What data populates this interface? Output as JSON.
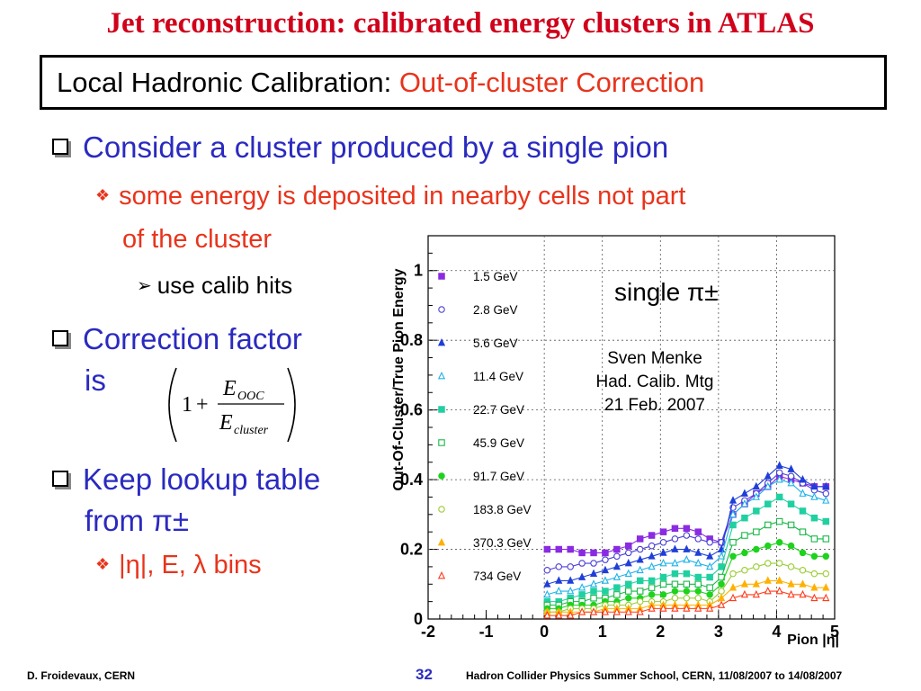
{
  "slide": {
    "title": "Jet reconstruction: calibrated energy clusters in ATLAS",
    "box_black": "Local Hadronic Calibration: ",
    "box_red": "Out-of-cluster Correction"
  },
  "bullets": {
    "b1": "Consider a cluster produced by a single pion",
    "b1_sub1_line1": "some energy is deposited in nearby cells not part",
    "b1_sub1_line2": "of the cluster",
    "b1_sub2": "use calib hits",
    "b2_line1": "Correction factor",
    "b2_line2": "is",
    "b3_line1": "Keep lookup table",
    "b3_line2": "from π±",
    "b3_sub1": "|η|, E, λ bins"
  },
  "formula": {
    "one": "1",
    "plus": "+",
    "num": "E",
    "num_sub": "OOC",
    "den": "E",
    "den_sub": "cluster"
  },
  "footer": {
    "left": "D. Froidevaux, CERN",
    "page": "32",
    "right": "Hadron Collider Physics Summer School, CERN, 11/08/2007 to 14/08/2007"
  },
  "chart_data": {
    "type": "scatter",
    "xlabel": "Pion |η|",
    "ylabel": "Out-Of-Cluster/True Pion Energy",
    "xlim": [
      -2,
      5
    ],
    "ylim": [
      0,
      1.1
    ],
    "x_ticks": [
      -2,
      -1,
      0,
      1,
      2,
      3,
      4,
      5
    ],
    "y_ticks": [
      0,
      0.2,
      0.4,
      0.6,
      0.8,
      1
    ],
    "annotation_main": "single π±",
    "annotation_lines": [
      "Sven Menke",
      "Had. Calib. Mtg",
      "21 Feb. 2007"
    ],
    "x": [
      0.05,
      0.25,
      0.45,
      0.65,
      0.85,
      1.05,
      1.25,
      1.45,
      1.65,
      1.85,
      2.05,
      2.25,
      2.45,
      2.65,
      2.85,
      3.05,
      3.25,
      3.45,
      3.65,
      3.85,
      4.05,
      4.25,
      4.45,
      4.65,
      4.85
    ],
    "series": [
      {
        "name": "1.5 GeV",
        "color": "#8a2be2",
        "marker": "square-filled",
        "values": [
          0.2,
          0.2,
          0.2,
          0.19,
          0.19,
          0.19,
          0.2,
          0.21,
          0.23,
          0.24,
          0.25,
          0.26,
          0.26,
          0.25,
          0.23,
          0.22,
          0.3,
          0.33,
          0.36,
          0.38,
          0.41,
          0.4,
          0.39,
          0.38,
          0.38
        ]
      },
      {
        "name": "2.8 GeV",
        "color": "#4b3fd6",
        "marker": "circle-open",
        "values": [
          0.14,
          0.15,
          0.15,
          0.16,
          0.16,
          0.17,
          0.18,
          0.19,
          0.2,
          0.21,
          0.22,
          0.23,
          0.24,
          0.23,
          0.22,
          0.22,
          0.32,
          0.34,
          0.36,
          0.39,
          0.42,
          0.41,
          0.39,
          0.37,
          0.36
        ]
      },
      {
        "name": "5.6 GeV",
        "color": "#1f3fd8",
        "marker": "triangle-filled",
        "values": [
          0.1,
          0.11,
          0.11,
          0.12,
          0.13,
          0.14,
          0.15,
          0.16,
          0.17,
          0.18,
          0.19,
          0.2,
          0.2,
          0.19,
          0.18,
          0.2,
          0.34,
          0.36,
          0.38,
          0.41,
          0.44,
          0.43,
          0.4,
          0.38,
          0.38
        ]
      },
      {
        "name": "11.4 GeV",
        "color": "#1fb3e8",
        "marker": "triangle-open",
        "values": [
          0.07,
          0.08,
          0.08,
          0.09,
          0.1,
          0.11,
          0.12,
          0.13,
          0.14,
          0.15,
          0.16,
          0.16,
          0.17,
          0.16,
          0.15,
          0.18,
          0.3,
          0.33,
          0.35,
          0.38,
          0.4,
          0.39,
          0.36,
          0.35,
          0.34
        ]
      },
      {
        "name": "22.7 GeV",
        "color": "#20d0a0",
        "marker": "square-filled",
        "values": [
          0.05,
          0.05,
          0.06,
          0.07,
          0.08,
          0.08,
          0.09,
          0.1,
          0.11,
          0.11,
          0.12,
          0.13,
          0.13,
          0.12,
          0.12,
          0.15,
          0.27,
          0.29,
          0.31,
          0.33,
          0.35,
          0.33,
          0.31,
          0.29,
          0.28
        ]
      },
      {
        "name": "45.9 GeV",
        "color": "#18b848",
        "marker": "square-open",
        "values": [
          0.04,
          0.04,
          0.05,
          0.05,
          0.06,
          0.06,
          0.07,
          0.08,
          0.08,
          0.09,
          0.1,
          0.1,
          0.1,
          0.1,
          0.09,
          0.12,
          0.22,
          0.24,
          0.25,
          0.27,
          0.28,
          0.27,
          0.25,
          0.23,
          0.23
        ]
      },
      {
        "name": "91.7 GeV",
        "color": "#1ed21e",
        "marker": "circle-filled",
        "values": [
          0.03,
          0.03,
          0.04,
          0.04,
          0.04,
          0.05,
          0.05,
          0.06,
          0.06,
          0.07,
          0.07,
          0.08,
          0.08,
          0.08,
          0.07,
          0.1,
          0.18,
          0.19,
          0.2,
          0.21,
          0.22,
          0.21,
          0.19,
          0.18,
          0.18
        ]
      },
      {
        "name": "183.8 GeV",
        "color": "#9acd32",
        "marker": "circle-open",
        "values": [
          0.02,
          0.02,
          0.03,
          0.03,
          0.03,
          0.04,
          0.04,
          0.04,
          0.05,
          0.05,
          0.05,
          0.06,
          0.06,
          0.06,
          0.05,
          0.08,
          0.13,
          0.14,
          0.15,
          0.16,
          0.16,
          0.15,
          0.14,
          0.13,
          0.13
        ]
      },
      {
        "name": "370.3 GeV",
        "color": "#ffb000",
        "marker": "triangle-filled",
        "values": [
          0.02,
          0.02,
          0.02,
          0.02,
          0.02,
          0.03,
          0.03,
          0.03,
          0.03,
          0.04,
          0.04,
          0.04,
          0.04,
          0.04,
          0.04,
          0.06,
          0.09,
          0.1,
          0.1,
          0.11,
          0.11,
          0.1,
          0.1,
          0.09,
          0.09
        ]
      },
      {
        "name": "734 GeV",
        "color": "#ff3b1a",
        "marker": "triangle-open",
        "values": [
          0.01,
          0.01,
          0.01,
          0.02,
          0.02,
          0.02,
          0.02,
          0.02,
          0.02,
          0.03,
          0.03,
          0.03,
          0.03,
          0.03,
          0.03,
          0.04,
          0.06,
          0.07,
          0.07,
          0.08,
          0.08,
          0.07,
          0.07,
          0.06,
          0.06
        ]
      }
    ]
  }
}
